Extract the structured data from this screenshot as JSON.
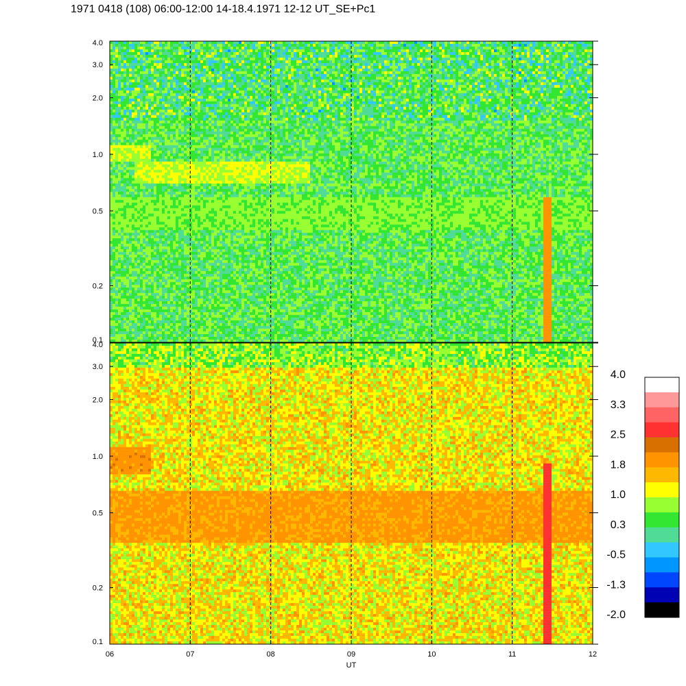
{
  "title": "1971 0418 (108) 06:00-12:00 14-18.4.1971  12-12 UT_SE+Pc1",
  "chart_data": [
    {
      "type": "heatmap",
      "panel": "top",
      "y_scale": "log",
      "ylim": [
        0.1,
        4.0
      ],
      "y_ticks": [
        "4.0",
        "3.0",
        "2.0",
        "1.0",
        "0.5",
        "0.2",
        "0.1"
      ],
      "y_tick_values": [
        4.0,
        3.0,
        2.0,
        1.0,
        0.5,
        0.2,
        0.1
      ],
      "xlim": [
        6,
        12
      ],
      "vertical_dashed_lines_at": [
        7,
        8,
        9,
        10,
        11
      ],
      "features": [
        {
          "kind": "band",
          "x_from": 6.0,
          "x_to": 6.5,
          "y_from": 0.9,
          "y_to": 1.1,
          "value": 1.0
        },
        {
          "kind": "band",
          "x_from": 6.3,
          "x_to": 8.5,
          "y_from": 0.7,
          "y_to": 0.9,
          "value": 1.0
        },
        {
          "kind": "band",
          "x_from": 6.0,
          "x_to": 12.0,
          "y_from": 0.4,
          "y_to": 0.6,
          "value": 0.7
        },
        {
          "kind": "spike",
          "x": 11.45,
          "y_from": 0.1,
          "y_to": 0.6,
          "value": 2.0
        }
      ]
    },
    {
      "type": "heatmap",
      "panel": "bottom",
      "y_scale": "log",
      "ylim": [
        0.1,
        4.0
      ],
      "y_ticks": [
        "4.0",
        "3.0",
        "2.0",
        "1.0",
        "0.5",
        "0.2",
        "0.1"
      ],
      "y_tick_values": [
        4.0,
        3.0,
        2.0,
        1.0,
        0.5,
        0.2,
        0.1
      ],
      "xlim": [
        6,
        12
      ],
      "x_ticks": [
        "06",
        "07",
        "08",
        "09",
        "10",
        "11",
        "12"
      ],
      "x_tick_values": [
        6,
        7,
        8,
        9,
        10,
        11,
        12
      ],
      "xlabel": "UT",
      "vertical_dashed_lines_at": [
        7,
        8,
        9,
        10,
        11
      ],
      "features": [
        {
          "kind": "band",
          "x_from": 6.0,
          "x_to": 6.5,
          "y_from": 0.8,
          "y_to": 1.1,
          "value": 2.0
        },
        {
          "kind": "band",
          "x_from": 6.0,
          "x_to": 12.0,
          "y_from": 0.35,
          "y_to": 0.65,
          "value": 1.9
        },
        {
          "kind": "spike",
          "x": 11.45,
          "y_from": 0.1,
          "y_to": 0.9,
          "value": 2.8
        }
      ]
    }
  ],
  "colorbar": {
    "labels": [
      "4.0",
      "3.3",
      "2.5",
      "1.8",
      "1.0",
      "0.3",
      "-0.5",
      "-1.3",
      "-2.0"
    ],
    "colors": [
      "#ffffff",
      "#ff9898",
      "#ff6464",
      "#ff3232",
      "#d87000",
      "#ff9400",
      "#ffb800",
      "#ffff00",
      "#98ff32",
      "#32e632",
      "#50dc96",
      "#32c8ff",
      "#0096ff",
      "#0046ff",
      "#0000b4",
      "#000000"
    ]
  }
}
